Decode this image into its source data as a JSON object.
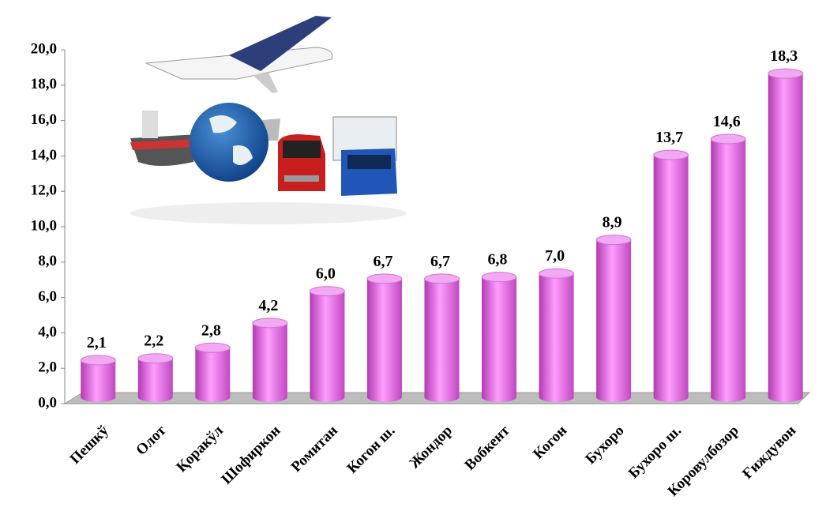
{
  "chart_data": {
    "type": "bar",
    "categories": [
      "Пешкў",
      "Олот",
      "Қоракўл",
      "Шофиркон",
      "Ромитан",
      "Когон ш.",
      "Жондор",
      "Вобкент",
      "Когон",
      "Бухоро",
      "Бухоро ш.",
      "Коровулбозор",
      "Ғиждувон"
    ],
    "values": [
      2.1,
      2.2,
      2.8,
      4.2,
      6.0,
      6.7,
      6.7,
      6.8,
      7.0,
      8.9,
      13.7,
      14.6,
      18.3
    ],
    "value_labels": [
      "2,1",
      "2,2",
      "2,8",
      "4,2",
      "6,0",
      "6,7",
      "6,7",
      "6,8",
      "7,0",
      "8,9",
      "13,7",
      "14,6",
      "18,3"
    ],
    "color": "#ee7cee",
    "ylim": [
      0,
      20
    ],
    "yticks": [
      {
        "value": 0,
        "label": "0,0"
      },
      {
        "value": 2,
        "label": "2,0"
      },
      {
        "value": 4,
        "label": "4,0"
      },
      {
        "value": 6,
        "label": "6,0"
      },
      {
        "value": 8,
        "label": "8,0"
      },
      {
        "value": 10,
        "label": "10,0"
      },
      {
        "value": 12,
        "label": "12,0"
      },
      {
        "value": 14,
        "label": "14,0"
      },
      {
        "value": 16,
        "label": "16,0"
      },
      {
        "value": 18,
        "label": "18,0"
      },
      {
        "value": 20,
        "label": "20,0"
      }
    ]
  }
}
